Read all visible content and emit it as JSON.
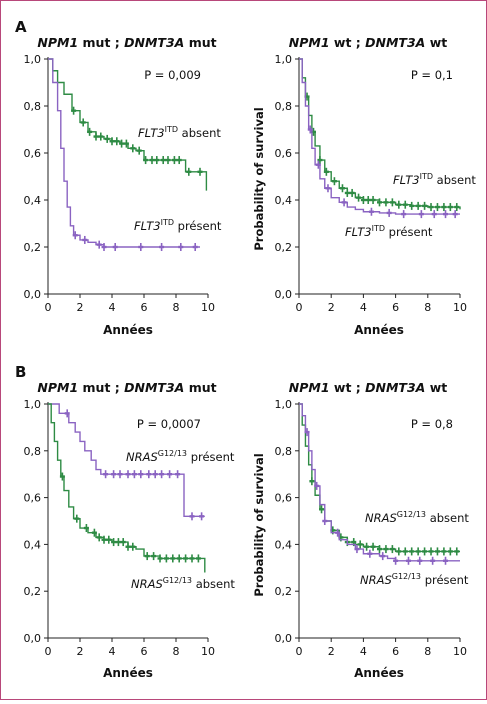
{
  "panel_letters": [
    "A",
    "B"
  ],
  "x_axis_title": "Années",
  "y_axis_title": "Probability of survival",
  "colors": {
    "green": "#2e8b44",
    "purple": "#8a63c2",
    "frame": "#b8477a"
  },
  "chart_data": [
    {
      "type": "line",
      "panel": "A",
      "title": {
        "gene1": "NPM1",
        "state1": "mut",
        "sep": ";",
        "gene2": "DNMT3A",
        "state2": "mut"
      },
      "p_value": "P = 0,009",
      "xlabel": "Années",
      "ylabel": "",
      "xlim": [
        0,
        10
      ],
      "ylim": [
        0,
        1
      ],
      "x_ticks": [
        "0",
        "2",
        "4",
        "6",
        "8",
        "10"
      ],
      "y_ticks": [
        "0,0",
        "0,2",
        "0,4",
        "0,6",
        "0,8",
        "1,0"
      ],
      "series": [
        {
          "name_gene": "FLT3",
          "name_sup": "ITD",
          "name_status": "absent",
          "color": "green",
          "points": [
            [
              0,
              1.0
            ],
            [
              0.3,
              0.95
            ],
            [
              0.6,
              0.9
            ],
            [
              1.0,
              0.85
            ],
            [
              1.5,
              0.78
            ],
            [
              2.0,
              0.73
            ],
            [
              2.5,
              0.69
            ],
            [
              3.0,
              0.67
            ],
            [
              3.5,
              0.66
            ],
            [
              4.0,
              0.65
            ],
            [
              4.5,
              0.64
            ],
            [
              5.0,
              0.62
            ],
            [
              5.5,
              0.61
            ],
            [
              6.0,
              0.57
            ],
            [
              7.0,
              0.57
            ],
            [
              8.0,
              0.57
            ],
            [
              8.6,
              0.52
            ],
            [
              9.8,
              0.52
            ],
            [
              9.9,
              0.44
            ]
          ],
          "censor": [
            1.6,
            2.2,
            2.6,
            3.0,
            3.3,
            3.7,
            4.0,
            4.3,
            4.6,
            4.9,
            5.3,
            5.7,
            6.1,
            6.5,
            6.8,
            7.2,
            7.5,
            7.9,
            8.2,
            8.8,
            9.5
          ]
        },
        {
          "name_gene": "FLT3",
          "name_sup": "ITD",
          "name_status": "présent",
          "color": "purple",
          "points": [
            [
              0,
              1.0
            ],
            [
              0.3,
              0.9
            ],
            [
              0.6,
              0.78
            ],
            [
              0.8,
              0.62
            ],
            [
              1.0,
              0.48
            ],
            [
              1.2,
              0.37
            ],
            [
              1.4,
              0.29
            ],
            [
              1.6,
              0.25
            ],
            [
              2.0,
              0.23
            ],
            [
              2.5,
              0.22
            ],
            [
              3.0,
              0.21
            ],
            [
              3.5,
              0.2
            ],
            [
              9.5,
              0.2
            ]
          ],
          "censor": [
            1.7,
            2.3,
            3.2,
            3.5,
            4.2,
            5.8,
            7.1,
            8.3,
            9.2
          ]
        }
      ]
    },
    {
      "type": "line",
      "panel": "A",
      "title": {
        "gene1": "NPM1",
        "state1": "wt",
        "sep": ";",
        "gene2": "DNMT3A",
        "state2": "wt"
      },
      "p_value": "P = 0,1",
      "xlabel": "Années",
      "ylabel": "Probability of survival",
      "xlim": [
        0,
        10
      ],
      "ylim": [
        0,
        1
      ],
      "x_ticks": [
        "0",
        "2",
        "4",
        "6",
        "8",
        "10"
      ],
      "y_ticks": [
        "0,0",
        "0,2",
        "0,4",
        "0,6",
        "0,8",
        "1,0"
      ],
      "series": [
        {
          "name_gene": "FLT3",
          "name_sup": "ITD",
          "name_status": "absent",
          "color": "green",
          "points": [
            [
              0,
              1.0
            ],
            [
              0.2,
              0.92
            ],
            [
              0.4,
              0.84
            ],
            [
              0.6,
              0.76
            ],
            [
              0.8,
              0.69
            ],
            [
              1.0,
              0.63
            ],
            [
              1.3,
              0.57
            ],
            [
              1.6,
              0.52
            ],
            [
              2.0,
              0.48
            ],
            [
              2.5,
              0.45
            ],
            [
              3.0,
              0.43
            ],
            [
              3.5,
              0.41
            ],
            [
              4.0,
              0.4
            ],
            [
              5.0,
              0.39
            ],
            [
              6.0,
              0.38
            ],
            [
              7.0,
              0.375
            ],
            [
              8.0,
              0.37
            ],
            [
              10.0,
              0.36
            ]
          ],
          "censor": [
            0.5,
            0.9,
            1.3,
            1.7,
            2.2,
            2.7,
            3.0,
            3.3,
            3.7,
            4.0,
            4.3,
            4.6,
            5.0,
            5.4,
            5.8,
            6.2,
            6.6,
            7.0,
            7.4,
            7.8,
            8.2,
            8.6,
            9.0,
            9.4,
            9.8
          ]
        },
        {
          "name_gene": "FLT3",
          "name_sup": "ITD",
          "name_status": "présent",
          "color": "purple",
          "points": [
            [
              0,
              1.0
            ],
            [
              0.2,
              0.9
            ],
            [
              0.4,
              0.8
            ],
            [
              0.6,
              0.7
            ],
            [
              0.8,
              0.62
            ],
            [
              1.0,
              0.55
            ],
            [
              1.3,
              0.49
            ],
            [
              1.6,
              0.45
            ],
            [
              2.0,
              0.41
            ],
            [
              2.5,
              0.39
            ],
            [
              3.0,
              0.37
            ],
            [
              3.5,
              0.36
            ],
            [
              4.0,
              0.35
            ],
            [
              5.0,
              0.345
            ],
            [
              6.0,
              0.34
            ],
            [
              7.0,
              0.34
            ],
            [
              10.0,
              0.34
            ]
          ],
          "censor": [
            0.7,
            1.2,
            1.8,
            2.8,
            4.5,
            5.6,
            6.5,
            7.6,
            8.4,
            9.1,
            9.7
          ]
        }
      ]
    },
    {
      "type": "line",
      "panel": "B",
      "title": {
        "gene1": "NPM1",
        "state1": "mut",
        "sep": ";",
        "gene2": "DNMT3A",
        "state2": "mut"
      },
      "p_value": "P = 0,0007",
      "xlabel": "Années",
      "ylabel": "",
      "xlim": [
        0,
        10
      ],
      "ylim": [
        0,
        1
      ],
      "x_ticks": [
        "0",
        "2",
        "4",
        "6",
        "8",
        "10"
      ],
      "y_ticks": [
        "0,0",
        "0,2",
        "0,4",
        "0,6",
        "0,8",
        "1,0"
      ],
      "series": [
        {
          "name_gene": "NRAS",
          "name_sup": "G12/13",
          "name_status": "présent",
          "color": "purple",
          "points": [
            [
              0,
              1.0
            ],
            [
              0.6,
              1.0
            ],
            [
              0.7,
              0.96
            ],
            [
              1.2,
              0.96
            ],
            [
              1.3,
              0.92
            ],
            [
              1.6,
              0.92
            ],
            [
              1.7,
              0.88
            ],
            [
              1.9,
              0.88
            ],
            [
              2.0,
              0.84
            ],
            [
              2.2,
              0.84
            ],
            [
              2.3,
              0.8
            ],
            [
              2.6,
              0.8
            ],
            [
              2.7,
              0.76
            ],
            [
              2.9,
              0.76
            ],
            [
              3.0,
              0.72
            ],
            [
              3.2,
              0.72
            ],
            [
              3.3,
              0.7
            ],
            [
              8.4,
              0.7
            ],
            [
              8.5,
              0.52
            ],
            [
              9.8,
              0.52
            ]
          ],
          "censor": [
            1.2,
            3.6,
            4.1,
            4.5,
            5.0,
            5.4,
            5.8,
            6.3,
            6.7,
            7.1,
            7.6,
            8.1,
            9.0,
            9.6
          ]
        },
        {
          "name_gene": "NRAS",
          "name_sup": "G12/13",
          "name_status": "absent",
          "color": "green",
          "points": [
            [
              0,
              1.0
            ],
            [
              0.2,
              0.92
            ],
            [
              0.4,
              0.84
            ],
            [
              0.6,
              0.76
            ],
            [
              0.8,
              0.69
            ],
            [
              1.0,
              0.63
            ],
            [
              1.3,
              0.56
            ],
            [
              1.6,
              0.51
            ],
            [
              2.0,
              0.47
            ],
            [
              2.5,
              0.45
            ],
            [
              3.0,
              0.43
            ],
            [
              3.5,
              0.42
            ],
            [
              4.0,
              0.41
            ],
            [
              5.0,
              0.39
            ],
            [
              5.5,
              0.38
            ],
            [
              6.0,
              0.35
            ],
            [
              7.0,
              0.34
            ],
            [
              8.0,
              0.34
            ],
            [
              9.7,
              0.34
            ],
            [
              9.8,
              0.28
            ]
          ],
          "censor": [
            0.9,
            1.8,
            2.4,
            2.9,
            3.2,
            3.5,
            3.8,
            4.1,
            4.4,
            4.7,
            5.0,
            5.3,
            6.2,
            6.6,
            7.0,
            7.4,
            7.8,
            8.2,
            8.6,
            9.0,
            9.4
          ]
        }
      ]
    },
    {
      "type": "line",
      "panel": "B",
      "title": {
        "gene1": "NPM1",
        "state1": "wt",
        "sep": ";",
        "gene2": "DNMT3A",
        "state2": "wt"
      },
      "p_value": "P = 0,8",
      "xlabel": "Années",
      "ylabel": "Probability of survival",
      "xlim": [
        0,
        10
      ],
      "ylim": [
        0,
        1
      ],
      "x_ticks": [
        "0",
        "2",
        "4",
        "6",
        "8",
        "10"
      ],
      "y_ticks": [
        "0,0",
        "0,2",
        "0,4",
        "0,6",
        "0,8",
        "1,0"
      ],
      "series": [
        {
          "name_gene": "NRAS",
          "name_sup": "G12/13",
          "name_status": "absent",
          "color": "green",
          "points": [
            [
              0,
              1.0
            ],
            [
              0.2,
              0.91
            ],
            [
              0.4,
              0.82
            ],
            [
              0.6,
              0.74
            ],
            [
              0.8,
              0.67
            ],
            [
              1.0,
              0.61
            ],
            [
              1.3,
              0.55
            ],
            [
              1.6,
              0.5
            ],
            [
              2.0,
              0.46
            ],
            [
              2.5,
              0.43
            ],
            [
              3.0,
              0.41
            ],
            [
              3.5,
              0.4
            ],
            [
              4.0,
              0.39
            ],
            [
              5.0,
              0.38
            ],
            [
              6.0,
              0.37
            ],
            [
              7.0,
              0.37
            ],
            [
              10.0,
              0.37
            ]
          ],
          "censor": [
            0.8,
            1.4,
            2.1,
            2.6,
            3.0,
            3.4,
            3.8,
            4.2,
            4.6,
            5.0,
            5.4,
            5.8,
            6.2,
            6.6,
            7.0,
            7.4,
            7.8,
            8.2,
            8.6,
            9.0,
            9.4,
            9.8
          ]
        },
        {
          "name_gene": "NRAS",
          "name_sup": "G12/13",
          "name_status": "présent",
          "color": "purple",
          "points": [
            [
              0,
              1.0
            ],
            [
              0.2,
              0.95
            ],
            [
              0.4,
              0.88
            ],
            [
              0.6,
              0.8
            ],
            [
              0.8,
              0.72
            ],
            [
              1.0,
              0.65
            ],
            [
              1.3,
              0.57
            ],
            [
              1.6,
              0.5
            ],
            [
              2.0,
              0.45
            ],
            [
              2.5,
              0.42
            ],
            [
              3.0,
              0.4
            ],
            [
              3.5,
              0.38
            ],
            [
              4.0,
              0.36
            ],
            [
              5.0,
              0.35
            ],
            [
              5.5,
              0.34
            ],
            [
              6.0,
              0.33
            ],
            [
              8.0,
              0.33
            ],
            [
              10.0,
              0.33
            ]
          ],
          "censor": [
            0.5,
            1.1,
            1.6,
            2.4,
            3.6,
            4.4,
            5.2,
            6.0,
            6.8,
            7.5,
            8.3,
            9.1
          ]
        }
      ]
    }
  ]
}
